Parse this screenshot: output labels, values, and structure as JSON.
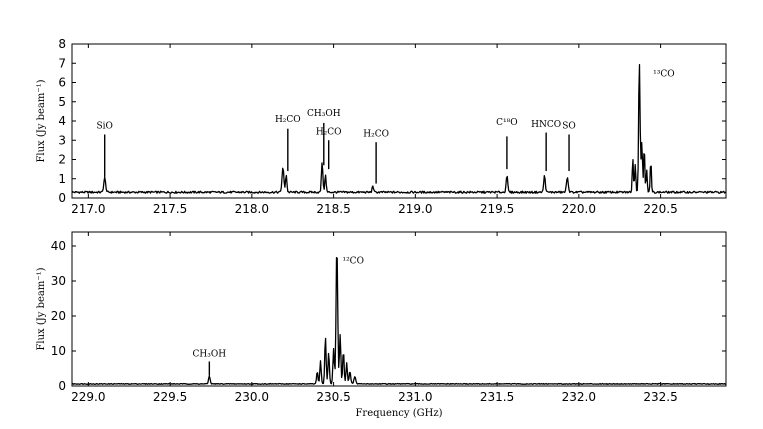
{
  "chart_data": [
    {
      "type": "line",
      "xlabel": "",
      "ylabel": "Flux (Jy beam⁻¹)",
      "xlim": [
        216.9,
        220.9
      ],
      "ylim": [
        0,
        8
      ],
      "xticks": [
        "217.0",
        "217.5",
        "218.0",
        "218.5",
        "219.0",
        "219.5",
        "220.0",
        "220.5"
      ],
      "yticks": [
        "0",
        "1",
        "2",
        "3",
        "4",
        "5",
        "6",
        "7",
        "8"
      ],
      "baseline": 0.3,
      "peaks": [
        {
          "x": 217.1,
          "y": 0.75,
          "w": 0.008
        },
        {
          "x": 218.19,
          "y": 1.25,
          "w": 0.008
        },
        {
          "x": 218.21,
          "y": 0.9,
          "w": 0.006
        },
        {
          "x": 218.43,
          "y": 1.6,
          "w": 0.006
        },
        {
          "x": 218.45,
          "y": 0.9,
          "w": 0.006
        },
        {
          "x": 218.74,
          "y": 0.35,
          "w": 0.006
        },
        {
          "x": 219.56,
          "y": 0.85,
          "w": 0.007
        },
        {
          "x": 219.79,
          "y": 0.85,
          "w": 0.007
        },
        {
          "x": 219.93,
          "y": 0.75,
          "w": 0.008
        },
        {
          "x": 220.33,
          "y": 1.8,
          "w": 0.005
        },
        {
          "x": 220.345,
          "y": 1.5,
          "w": 0.005
        },
        {
          "x": 220.37,
          "y": 6.9,
          "w": 0.006
        },
        {
          "x": 220.385,
          "y": 2.6,
          "w": 0.006
        },
        {
          "x": 220.4,
          "y": 2.4,
          "w": 0.005
        },
        {
          "x": 220.415,
          "y": 1.2,
          "w": 0.005
        },
        {
          "x": 220.44,
          "y": 1.6,
          "w": 0.005
        }
      ],
      "annotations": [
        {
          "label": "SiO",
          "x": 217.1,
          "y_text": 3.6,
          "y_top": 3.3,
          "y_bottom": 1.1
        },
        {
          "label": "H₂CO",
          "x": 218.22,
          "y_text": 3.95,
          "y_top": 3.6,
          "y_bottom": 1.4
        },
        {
          "label": "CH₃OH",
          "x": 218.44,
          "y_text": 4.25,
          "y_top": 3.9,
          "y_bottom": 1.7
        },
        {
          "label": "H₂CO",
          "x": 218.47,
          "y_text": 3.3,
          "y_top": 3.0,
          "y_bottom": 1.5
        },
        {
          "label": "H₂CO",
          "x": 218.76,
          "y_text": 3.2,
          "y_top": 2.9,
          "y_bottom": 0.75
        },
        {
          "label": "C¹⁸O",
          "x": 219.56,
          "y_text": 3.8,
          "y_top": 3.2,
          "y_bottom": 1.5
        },
        {
          "label": "HNCO",
          "x": 219.8,
          "y_text": 3.7,
          "y_top": 3.4,
          "y_bottom": 1.4
        },
        {
          "label": "SO",
          "x": 219.94,
          "y_text": 3.6,
          "y_top": 3.3,
          "y_bottom": 1.4
        },
        {
          "label": "¹³CO",
          "x": 220.52,
          "y_text": 6.3,
          "y_top": null,
          "y_bottom": null
        }
      ]
    },
    {
      "type": "line",
      "xlabel": "Frequency (GHz)",
      "ylabel": "Flux (Jy beam⁻¹)",
      "xlim": [
        228.9,
        232.9
      ],
      "ylim": [
        0,
        44
      ],
      "xticks": [
        "229.0",
        "229.5",
        "230.0",
        "230.5",
        "231.0",
        "231.5",
        "232.0",
        "232.5"
      ],
      "yticks": [
        "0",
        "10",
        "20",
        "30",
        "40"
      ],
      "baseline": 0.6,
      "peaks": [
        {
          "x": 229.74,
          "y": 2.2,
          "w": 0.007
        },
        {
          "x": 230.4,
          "y": 3.5,
          "w": 0.006
        },
        {
          "x": 230.42,
          "y": 6.5,
          "w": 0.006
        },
        {
          "x": 230.45,
          "y": 13.5,
          "w": 0.006
        },
        {
          "x": 230.47,
          "y": 9.0,
          "w": 0.006
        },
        {
          "x": 230.5,
          "y": 10.0,
          "w": 0.006
        },
        {
          "x": 230.52,
          "y": 39.8,
          "w": 0.007
        },
        {
          "x": 230.54,
          "y": 14.0,
          "w": 0.006
        },
        {
          "x": 230.56,
          "y": 9.5,
          "w": 0.006
        },
        {
          "x": 230.58,
          "y": 6.0,
          "w": 0.006
        },
        {
          "x": 230.6,
          "y": 3.5,
          "w": 0.007
        },
        {
          "x": 230.63,
          "y": 2.0,
          "w": 0.008
        }
      ],
      "annotations": [
        {
          "label": "CH₃OH",
          "x": 229.74,
          "y_text": 8.5,
          "y_top": 7.0,
          "y_bottom": 3.0
        },
        {
          "label": "¹²CO",
          "x": 230.62,
          "y_text": 35.0,
          "y_top": null,
          "y_bottom": null
        }
      ]
    }
  ]
}
